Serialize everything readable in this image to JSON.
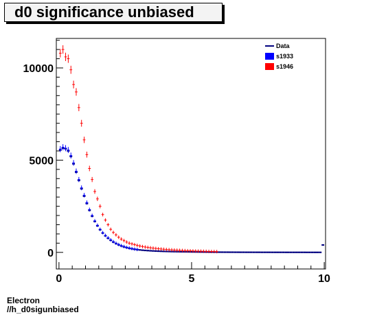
{
  "chart_data": {
    "type": "scatter",
    "title": "d0 significance unbiased",
    "xlabel": "",
    "ylabel": "",
    "xlim": [
      -0.1,
      10.05
    ],
    "ylim": [
      -900,
      11600
    ],
    "x_ticks": [
      {
        "value": 0,
        "label": "0"
      },
      {
        "value": 5,
        "label": "5"
      },
      {
        "value": 10,
        "label": "10"
      }
    ],
    "y_ticks": [
      {
        "value": 0,
        "label": "0"
      },
      {
        "value": 5000,
        "label": "5000"
      },
      {
        "value": 10000,
        "label": "10000"
      }
    ],
    "legend_position": "top-right",
    "grid": false,
    "series": [
      {
        "name": "Data",
        "color": "#00007f",
        "marker": "line",
        "points": [
          [
            0.05,
            5550
          ],
          [
            0.15,
            5650
          ],
          [
            0.25,
            5620
          ],
          [
            0.35,
            5500
          ],
          [
            0.45,
            5200
          ],
          [
            0.55,
            4800
          ],
          [
            0.65,
            4350
          ],
          [
            0.75,
            3900
          ],
          [
            0.85,
            3450
          ],
          [
            0.95,
            3050
          ],
          [
            1.05,
            2650
          ],
          [
            1.15,
            2280
          ],
          [
            1.25,
            1960
          ],
          [
            1.35,
            1680
          ],
          [
            1.45,
            1440
          ],
          [
            1.55,
            1230
          ],
          [
            1.65,
            1050
          ],
          [
            1.75,
            900
          ],
          [
            1.85,
            770
          ],
          [
            1.95,
            660
          ],
          [
            2.05,
            560
          ],
          [
            2.15,
            480
          ],
          [
            2.25,
            410
          ],
          [
            2.35,
            350
          ],
          [
            2.45,
            300
          ],
          [
            2.55,
            260
          ],
          [
            2.65,
            225
          ],
          [
            2.75,
            195
          ],
          [
            2.85,
            170
          ],
          [
            2.95,
            150
          ],
          [
            3.05,
            132
          ],
          [
            3.15,
            118
          ],
          [
            3.25,
            105
          ],
          [
            3.35,
            95
          ],
          [
            3.45,
            86
          ],
          [
            3.55,
            78
          ],
          [
            3.65,
            71
          ],
          [
            3.75,
            65
          ],
          [
            3.85,
            59
          ],
          [
            3.95,
            54
          ],
          [
            4.05,
            50
          ],
          [
            4.15,
            46
          ],
          [
            4.25,
            42
          ],
          [
            4.35,
            39
          ],
          [
            4.45,
            36
          ],
          [
            4.55,
            33
          ],
          [
            4.65,
            31
          ],
          [
            4.75,
            29
          ],
          [
            4.85,
            27
          ],
          [
            4.95,
            25
          ],
          [
            5.05,
            23
          ],
          [
            5.15,
            22
          ],
          [
            5.25,
            20
          ],
          [
            5.35,
            19
          ],
          [
            5.45,
            18
          ],
          [
            5.55,
            17
          ],
          [
            5.65,
            16
          ],
          [
            5.75,
            15
          ],
          [
            5.85,
            14
          ],
          [
            5.95,
            13
          ],
          [
            6.05,
            12
          ],
          [
            6.15,
            11
          ],
          [
            6.25,
            10
          ],
          [
            6.35,
            10
          ],
          [
            6.45,
            9
          ],
          [
            6.55,
            9
          ],
          [
            6.65,
            8
          ],
          [
            6.75,
            8
          ],
          [
            6.85,
            7
          ],
          [
            6.95,
            7
          ],
          [
            7.05,
            6
          ],
          [
            7.15,
            6
          ],
          [
            7.25,
            6
          ],
          [
            7.35,
            5
          ],
          [
            7.45,
            5
          ],
          [
            7.55,
            5
          ],
          [
            7.65,
            4
          ],
          [
            7.75,
            4
          ],
          [
            7.85,
            4
          ],
          [
            7.95,
            4
          ],
          [
            8.05,
            3
          ],
          [
            8.15,
            3
          ],
          [
            8.25,
            3
          ],
          [
            8.35,
            3
          ],
          [
            8.45,
            3
          ],
          [
            8.55,
            2
          ],
          [
            8.65,
            2
          ],
          [
            8.75,
            2
          ],
          [
            8.85,
            2
          ],
          [
            8.95,
            2
          ],
          [
            9.05,
            2
          ],
          [
            9.15,
            2
          ],
          [
            9.25,
            2
          ],
          [
            9.35,
            1
          ],
          [
            9.45,
            1
          ],
          [
            9.55,
            1
          ],
          [
            9.65,
            1
          ],
          [
            9.75,
            1
          ],
          [
            9.85,
            1
          ],
          [
            9.95,
            400
          ]
        ]
      },
      {
        "name": "s1933",
        "color": "#0000ff",
        "marker": "cross",
        "points": [
          [
            0.05,
            5600
          ],
          [
            0.15,
            5700
          ],
          [
            0.25,
            5650
          ],
          [
            0.35,
            5550
          ],
          [
            0.45,
            5250
          ],
          [
            0.55,
            4850
          ],
          [
            0.65,
            4400
          ],
          [
            0.75,
            3950
          ],
          [
            0.85,
            3500
          ],
          [
            0.95,
            3100
          ],
          [
            1.05,
            2700
          ],
          [
            1.15,
            2320
          ],
          [
            1.25,
            2000
          ],
          [
            1.35,
            1710
          ],
          [
            1.45,
            1470
          ],
          [
            1.55,
            1250
          ],
          [
            1.65,
            1070
          ],
          [
            1.75,
            920
          ],
          [
            1.85,
            790
          ],
          [
            1.95,
            680
          ],
          [
            2.05,
            580
          ],
          [
            2.15,
            495
          ],
          [
            2.25,
            425
          ],
          [
            2.35,
            365
          ],
          [
            2.45,
            315
          ],
          [
            2.55,
            270
          ],
          [
            2.65,
            235
          ],
          [
            2.75,
            205
          ],
          [
            2.85,
            178
          ],
          [
            2.95,
            156
          ]
        ]
      },
      {
        "name": "s1946",
        "color": "#ff0000",
        "marker": "cross",
        "points": [
          [
            0.05,
            10800
          ],
          [
            0.15,
            11000
          ],
          [
            0.25,
            10600
          ],
          [
            0.35,
            10500
          ],
          [
            0.45,
            9900
          ],
          [
            0.55,
            9100
          ],
          [
            0.65,
            8700
          ],
          [
            0.75,
            7850
          ],
          [
            0.85,
            7000
          ],
          [
            0.95,
            6100
          ],
          [
            1.05,
            5300
          ],
          [
            1.15,
            4550
          ],
          [
            1.25,
            3950
          ],
          [
            1.35,
            3300
          ],
          [
            1.45,
            2900
          ],
          [
            1.55,
            2500
          ],
          [
            1.65,
            2050
          ],
          [
            1.75,
            1750
          ],
          [
            1.85,
            1500
          ],
          [
            1.95,
            1250
          ],
          [
            2.05,
            1080
          ],
          [
            2.15,
            950
          ],
          [
            2.25,
            820
          ],
          [
            2.35,
            720
          ],
          [
            2.45,
            640
          ],
          [
            2.55,
            560
          ],
          [
            2.65,
            500
          ],
          [
            2.75,
            460
          ],
          [
            2.85,
            420
          ],
          [
            2.95,
            380
          ],
          [
            3.05,
            345
          ],
          [
            3.15,
            315
          ],
          [
            3.25,
            290
          ],
          [
            3.35,
            268
          ],
          [
            3.45,
            248
          ],
          [
            3.55,
            230
          ],
          [
            3.65,
            212
          ],
          [
            3.75,
            196
          ],
          [
            3.85,
            182
          ],
          [
            3.95,
            168
          ],
          [
            4.05,
            156
          ],
          [
            4.15,
            145
          ],
          [
            4.25,
            135
          ],
          [
            4.35,
            126
          ],
          [
            4.45,
            118
          ],
          [
            4.55,
            110
          ],
          [
            4.65,
            103
          ],
          [
            4.75,
            96
          ],
          [
            4.85,
            90
          ],
          [
            4.95,
            84
          ],
          [
            5.05,
            78
          ],
          [
            5.15,
            73
          ],
          [
            5.25,
            68
          ],
          [
            5.35,
            64
          ],
          [
            5.45,
            60
          ],
          [
            5.55,
            56
          ],
          [
            5.65,
            52
          ],
          [
            5.75,
            49
          ],
          [
            5.85,
            46
          ],
          [
            5.95,
            43
          ]
        ]
      }
    ]
  },
  "footer": {
    "line1": "Electron",
    "line2": "//h_d0sigunbiased"
  }
}
